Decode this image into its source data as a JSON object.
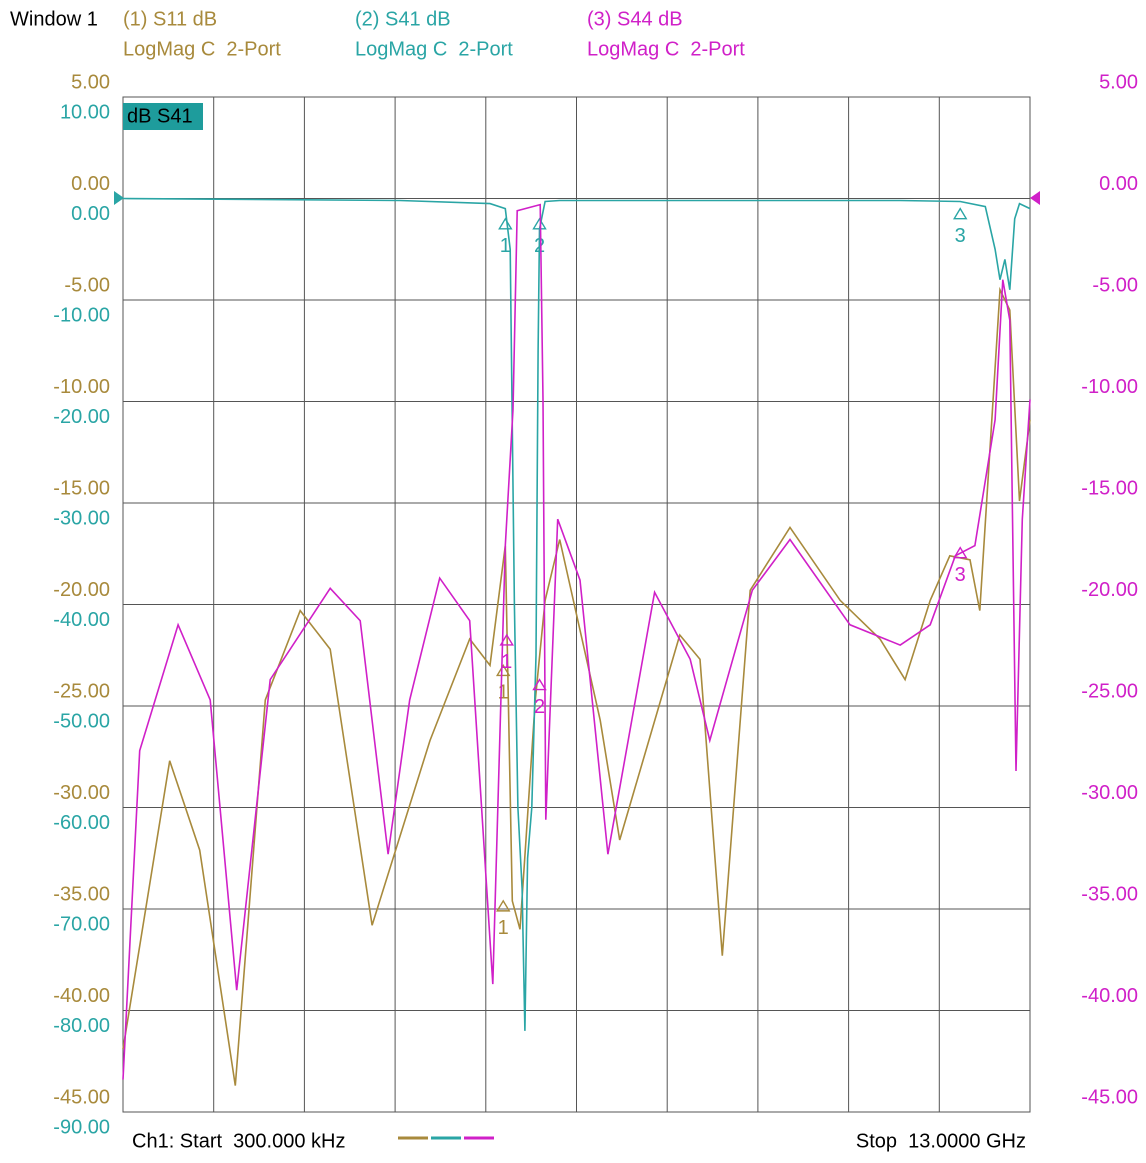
{
  "window": "Window 1",
  "badge": "dB S41",
  "footer": {
    "start": "Ch1: Start  300.000 kHz",
    "stop": "Stop  13.0000 GHz"
  },
  "chart_data": {
    "type": "line",
    "xlim": [
      0.0003,
      13
    ],
    "ylim": [
      -45,
      5
    ],
    "yticks": [
      {
        "value": 5,
        "label": "5.00"
      },
      {
        "value": 0,
        "label": "0.00"
      },
      {
        "value": -5,
        "label": "-5.00"
      },
      {
        "value": -10,
        "label": "-10.00"
      },
      {
        "value": -15,
        "label": "-15.00"
      },
      {
        "value": -20,
        "label": "-20.00"
      },
      {
        "value": -25,
        "label": "-25.00"
      },
      {
        "value": -30,
        "label": "-30.00"
      },
      {
        "value": -35,
        "label": "-35.00"
      },
      {
        "value": -40,
        "label": "-40.00"
      },
      {
        "value": -45,
        "label": "-45.00"
      }
    ],
    "y3lim": [
      -90,
      10
    ],
    "y3ticks": [
      {
        "value": 10,
        "label": "10.00"
      },
      {
        "value": 0,
        "label": "0.00"
      },
      {
        "value": -10,
        "label": "-10.00"
      },
      {
        "value": -20,
        "label": "-20.00"
      },
      {
        "value": -30,
        "label": "-30.00"
      },
      {
        "value": -40,
        "label": "-40.00"
      },
      {
        "value": -50,
        "label": "-50.00"
      },
      {
        "value": -60,
        "label": "-60.00"
      },
      {
        "value": -70,
        "label": "-70.00"
      },
      {
        "value": -80,
        "label": "-80.00"
      },
      {
        "value": -90,
        "label": "-90.00"
      }
    ],
    "y2lim": [
      -45,
      5
    ],
    "y2ticks": [
      {
        "value": 5,
        "label": "5.00"
      },
      {
        "value": 0,
        "label": "0.00"
      },
      {
        "value": -5,
        "label": "-5.00"
      },
      {
        "value": -10,
        "label": "-10.00"
      },
      {
        "value": -15,
        "label": "-15.00"
      },
      {
        "value": -20,
        "label": "-20.00"
      },
      {
        "value": -25,
        "label": "-25.00"
      },
      {
        "value": -30,
        "label": "-30.00"
      },
      {
        "value": -35,
        "label": "-35.00"
      },
      {
        "value": -40,
        "label": "-40.00"
      },
      {
        "value": -45,
        "label": "-45.00"
      }
    ],
    "grid": true,
    "series": [
      {
        "name": "(1) S11 dB",
        "format": "LogMag C  2-Port",
        "color": "#a88a3c",
        "axis": "y",
        "x": [
          0.0003,
          0.67,
          1.1,
          1.61,
          2.04,
          2.54,
          2.97,
          3.57,
          4.4,
          4.97,
          5.26,
          5.48,
          5.58,
          5.69,
          5.91,
          6.05,
          6.26,
          6.84,
          7.12,
          7.98,
          8.27,
          8.59,
          8.99,
          9.56,
          10.28,
          10.85,
          11.21,
          11.57,
          11.85,
          12.14,
          12.28,
          12.57,
          12.71,
          12.85,
          13.0
        ],
        "values": [
          -41.9,
          -27.7,
          -32.1,
          -43.7,
          -24.7,
          -20.3,
          -22.2,
          -35.8,
          -26.7,
          -21.7,
          -23.0,
          -17.1,
          -34.6,
          -36.0,
          -24.7,
          -19.8,
          -16.8,
          -25.7,
          -31.6,
          -21.5,
          -22.7,
          -37.3,
          -19.3,
          -16.2,
          -19.8,
          -21.7,
          -23.7,
          -19.8,
          -17.6,
          -17.8,
          -20.3,
          -4.5,
          -5.5,
          -14.9,
          -10.9
        ],
        "markers": [
          {
            "label": "1",
            "x": 5.45,
            "value": -23.0
          },
          {
            "label": "1",
            "x": 5.45,
            "value": -34.6
          }
        ]
      },
      {
        "name": "(2) S41 dB",
        "format": "LogMag C  2-Port",
        "color": "#2aa5a5",
        "axis": "y3",
        "x": [
          0.0003,
          3.97,
          5.26,
          5.48,
          5.55,
          5.61,
          5.66,
          5.72,
          5.76,
          5.8,
          5.86,
          5.92,
          5.95,
          5.97,
          6.05,
          6.26,
          11.14,
          12.0,
          12.36,
          12.5,
          12.57,
          12.64,
          12.71,
          12.78,
          12.85,
          13.0
        ],
        "values": [
          0,
          -0.2,
          -0.5,
          -1,
          -5,
          -40,
          -60,
          -68,
          -82,
          -65,
          -60,
          -45,
          -15,
          -3,
          -0.3,
          -0.2,
          -0.2,
          -0.3,
          -0.8,
          -5,
          -8,
          -6,
          -9,
          -2,
          -0.5,
          -1
        ],
        "markers": [
          {
            "label": "1",
            "x": 5.48,
            "value": -2
          },
          {
            "label": "2",
            "x": 5.97,
            "value": -2
          },
          {
            "label": "3",
            "x": 12.0,
            "value": -1
          }
        ]
      },
      {
        "name": "(3) S44 dB",
        "format": "LogMag C  2-Port",
        "color": "#d020c8",
        "axis": "y2",
        "x": [
          0.0003,
          0.24,
          0.79,
          1.25,
          1.63,
          2.11,
          2.97,
          3.4,
          3.8,
          4.11,
          4.54,
          4.97,
          5.3,
          5.48,
          5.59,
          5.65,
          5.98,
          6.02,
          6.06,
          6.23,
          6.55,
          6.95,
          7.62,
          8.13,
          8.41,
          9.02,
          9.56,
          10.42,
          11.14,
          11.57,
          11.93,
          12.21,
          12.5,
          12.61,
          12.71,
          12.8,
          12.89,
          13.0
        ],
        "values": [
          -43.4,
          -27.2,
          -21.0,
          -24.7,
          -39.0,
          -23.7,
          -19.2,
          -20.8,
          -32.3,
          -24.7,
          -18.7,
          -20.8,
          -38.7,
          -17.1,
          -10.4,
          -0.6,
          -0.3,
          -9.9,
          -30.6,
          -15.8,
          -18.8,
          -32.3,
          -19.4,
          -22.7,
          -26.7,
          -19.3,
          -16.8,
          -21.0,
          -22.0,
          -21.0,
          -17.6,
          -17.1,
          -10.9,
          -4.0,
          -6.0,
          -28.2,
          -15.8,
          -9.9
        ],
        "markers": [
          {
            "label": "1",
            "x": 5.5,
            "value": -21.5
          },
          {
            "label": "2",
            "x": 5.97,
            "value": -23.7
          },
          {
            "label": "3",
            "x": 12.0,
            "value": -17.2
          }
        ]
      }
    ]
  }
}
